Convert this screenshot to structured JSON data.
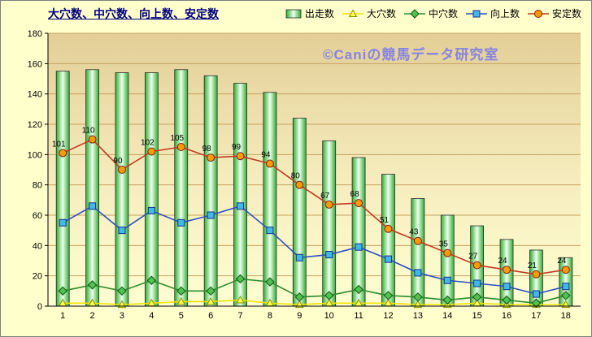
{
  "title": "大穴数、中穴数、向上数、安定数",
  "watermark": "©Caniの競馬データ研究室",
  "chart_data": {
    "type": "bar+line combo",
    "categories": [
      "1",
      "2",
      "3",
      "4",
      "5",
      "6",
      "7",
      "8",
      "9",
      "10",
      "11",
      "12",
      "13",
      "14",
      "15",
      "16",
      "17",
      "18"
    ],
    "ylim": [
      0,
      180
    ],
    "yticks": [
      0,
      20,
      40,
      60,
      80,
      100,
      120,
      140,
      160,
      180
    ],
    "grid": "horizontal",
    "legend_position": "top-right",
    "plot_bg_top": "#E3CE97",
    "plot_bg_mid": "#F6EDBE",
    "plot_bg_bottom": "#FFFFD2",
    "grid_color": "#C7A163",
    "bar_series": {
      "key": "shusso",
      "name": "出走数",
      "values": [
        155,
        156,
        154,
        154,
        156,
        152,
        147,
        141,
        124,
        109,
        98,
        87,
        71,
        60,
        53,
        44,
        37,
        32
      ],
      "edge_color": "#2FAE2F",
      "center_color": "#EFFFEF",
      "outline_color": "#2B2B2B"
    },
    "line_series": [
      {
        "key": "oana",
        "name": "大穴数",
        "marker": "triangle",
        "line_color": "#F2E400",
        "marker_fill": "#FFFF55",
        "marker_stroke": "#8C8C00",
        "show_labels": false,
        "values": [
          2,
          2,
          1,
          2,
          3,
          3,
          4,
          2,
          1,
          2,
          2,
          2,
          1,
          1,
          2,
          1,
          1,
          1
        ]
      },
      {
        "key": "chuana",
        "name": "中穴数",
        "marker": "diamond",
        "line_color": "#2E8B2E",
        "marker_fill": "#4FC24F",
        "marker_stroke": "#145214",
        "show_labels": false,
        "values": [
          10,
          14,
          10,
          17,
          10,
          10,
          18,
          16,
          6,
          7,
          11,
          7,
          6,
          4,
          6,
          4,
          2,
          7
        ]
      },
      {
        "key": "kojo",
        "name": "向上数",
        "marker": "square",
        "line_color": "#2E4FC2",
        "marker_fill": "#3FB9E6",
        "marker_stroke": "#1A2E8C",
        "show_labels": false,
        "values": [
          55,
          66,
          50,
          63,
          55,
          60,
          66,
          50,
          32,
          34,
          39,
          31,
          22,
          17,
          15,
          13,
          8,
          13
        ]
      },
      {
        "key": "antei",
        "name": "安定数",
        "marker": "circle",
        "line_color": "#C23B22",
        "marker_fill": "#FF9900",
        "marker_stroke": "#7A1F1F",
        "show_labels": true,
        "label_color": "#000000",
        "values": [
          101,
          110,
          90,
          102,
          105,
          98,
          99,
          94,
          80,
          67,
          68,
          51,
          43,
          35,
          27,
          24,
          21,
          24
        ]
      }
    ]
  }
}
